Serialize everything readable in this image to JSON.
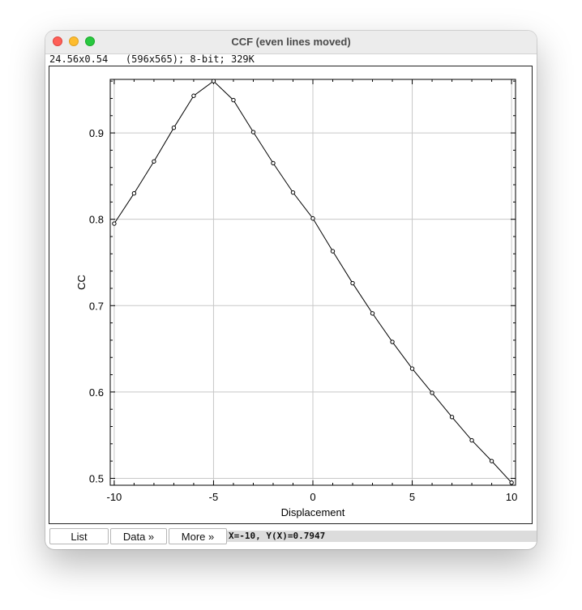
{
  "window": {
    "title": "CCF (even lines moved)",
    "info": "24.56x0.54   (596x565); 8-bit; 329K"
  },
  "buttons": {
    "list": "List",
    "data": "Data »",
    "more": "More »"
  },
  "status": {
    "coords": "X=-10, Y(X)=0.7947"
  },
  "colors": {
    "close": "#fe5f57",
    "minimize": "#febc2e",
    "maximize": "#28c840",
    "grid": "#c8c8c8",
    "line": "#000000"
  },
  "chart_data": {
    "type": "line",
    "xlabel": "Displacement",
    "ylabel": "CC",
    "xlim": [
      -10.2,
      10.2
    ],
    "ylim": [
      0.492,
      0.962
    ],
    "xticks": [
      -10,
      -5,
      0,
      5,
      10
    ],
    "yticks": [
      0.5,
      0.6,
      0.7,
      0.8,
      0.9
    ],
    "xtick_labels": [
      "-10",
      "-5",
      "0",
      "5",
      "10"
    ],
    "ytick_labels": [
      "0.5",
      "0.6",
      "0.7",
      "0.8",
      "0.9"
    ],
    "grid": true,
    "x": [
      -10,
      -9,
      -8,
      -7,
      -6,
      -5,
      -4,
      -3,
      -2,
      -1,
      0,
      1,
      2,
      3,
      4,
      5,
      6,
      7,
      8,
      9,
      10
    ],
    "y": [
      0.795,
      0.83,
      0.867,
      0.906,
      0.943,
      0.96,
      0.938,
      0.901,
      0.865,
      0.831,
      0.801,
      0.763,
      0.726,
      0.691,
      0.658,
      0.627,
      0.599,
      0.571,
      0.544,
      0.52,
      0.495
    ]
  }
}
